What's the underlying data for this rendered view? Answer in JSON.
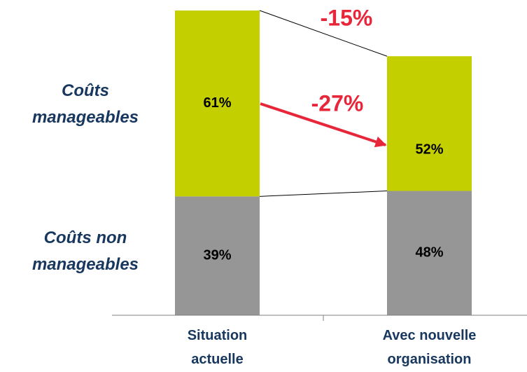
{
  "chart_data": {
    "type": "stacked_bar",
    "categories": [
      "Situation actuelle",
      "Avec nouvelle organisation"
    ],
    "series": [
      {
        "name": "Coûts non manageables",
        "color": "#969696",
        "values": [
          39,
          48
        ],
        "value_labels": [
          "39%",
          "48%"
        ]
      },
      {
        "name": "Coûts manageables",
        "color": "#c4cf00",
        "values": [
          61,
          52
        ],
        "value_labels": [
          "61%",
          "52%"
        ]
      }
    ],
    "annotations": [
      {
        "value": -15,
        "label": "-15%",
        "color": "#e8263a"
      },
      {
        "value": -27,
        "label": "-27%",
        "color": "#e8263a"
      }
    ],
    "label_color": "#17375e"
  }
}
